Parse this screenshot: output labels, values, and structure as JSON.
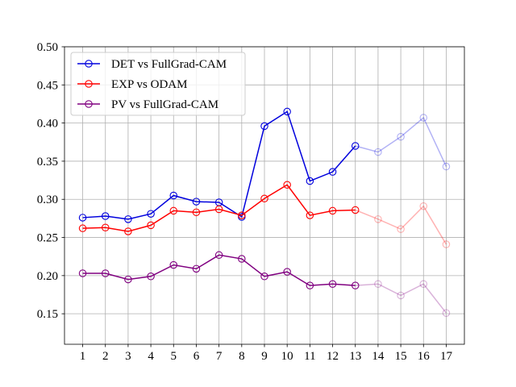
{
  "chart_data": {
    "type": "line",
    "title": "",
    "xlabel": "",
    "ylabel": "",
    "x": [
      1,
      2,
      3,
      4,
      5,
      6,
      7,
      8,
      9,
      10,
      11,
      12,
      13,
      14,
      15,
      16,
      17
    ],
    "x_tick_labels": [
      "1",
      "2",
      "3",
      "4",
      "5",
      "6",
      "7",
      "8",
      "9",
      "10",
      "11",
      "12",
      "13",
      "14",
      "15",
      "16",
      "17"
    ],
    "xlim": [
      0.2,
      17.8
    ],
    "ylim": [
      0.11,
      0.5
    ],
    "y_ticks": [
      0.15,
      0.2,
      0.25,
      0.3,
      0.35,
      0.4,
      0.45,
      0.5
    ],
    "y_tick_labels": [
      "0.15",
      "0.20",
      "0.25",
      "0.30",
      "0.35",
      "0.40",
      "0.45",
      "0.50"
    ],
    "grid": true,
    "legend_position": "top-left",
    "faded_from_x": 13,
    "series": [
      {
        "name": "DET vs FullGrad-CAM",
        "color": "#0000dd",
        "values": [
          0.276,
          0.278,
          0.274,
          0.281,
          0.305,
          0.297,
          0.296,
          0.277,
          0.396,
          0.415,
          0.324,
          0.336,
          0.37,
          0.362,
          0.382,
          0.407,
          0.343
        ]
      },
      {
        "name": "EXP vs ODAM",
        "color": "#ff0000",
        "values": [
          0.262,
          0.263,
          0.258,
          0.266,
          0.285,
          0.283,
          0.287,
          0.279,
          0.301,
          0.319,
          0.279,
          0.285,
          0.286,
          0.274,
          0.261,
          0.291,
          0.241
        ]
      },
      {
        "name": "PV vs FullGrad-CAM",
        "color": "#800080",
        "values": [
          0.203,
          0.203,
          0.195,
          0.199,
          0.214,
          0.209,
          0.227,
          0.222,
          0.199,
          0.205,
          0.187,
          0.189,
          0.187,
          0.189,
          0.174,
          0.189,
          0.151
        ]
      }
    ]
  }
}
